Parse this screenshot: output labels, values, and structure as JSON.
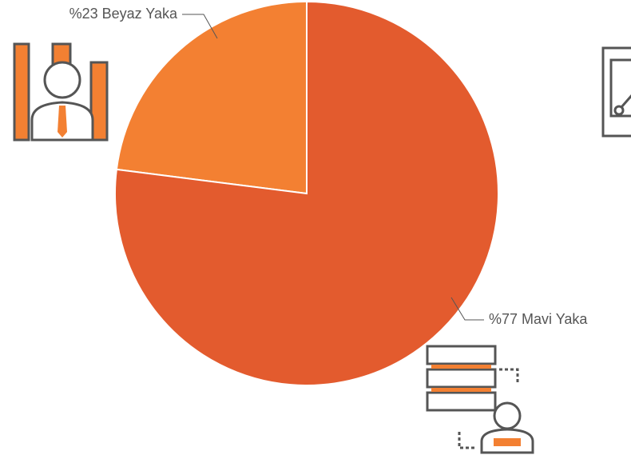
{
  "chart_data": {
    "type": "pie",
    "values": [
      23,
      77
    ],
    "value_labels": [
      "%23 Beyaz Yaka",
      "%77 Mavi Yaka"
    ],
    "colors": [
      "#f38032",
      "#e35b2e"
    ]
  }
}
